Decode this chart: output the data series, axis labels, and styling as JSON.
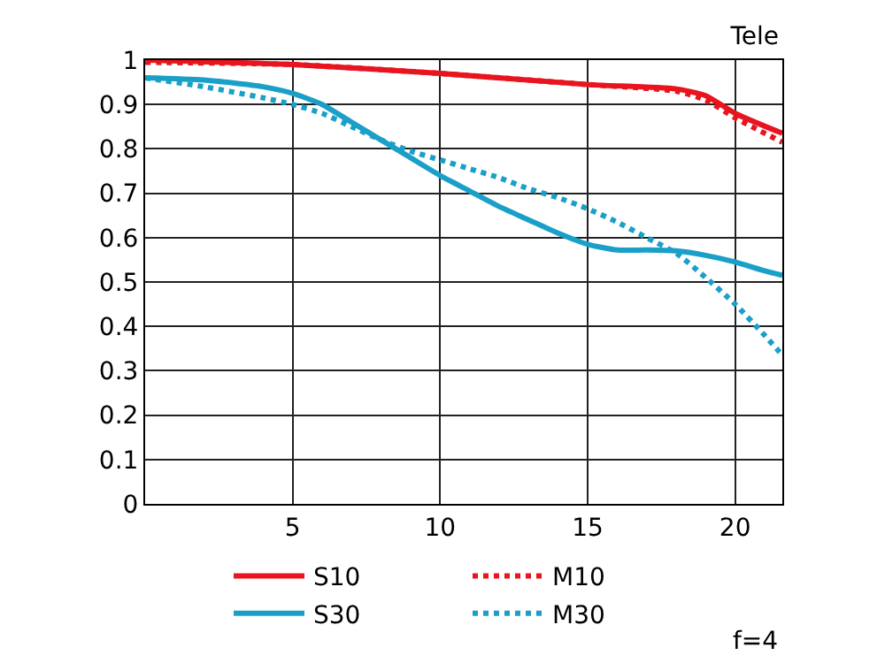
{
  "chart_data": {
    "type": "line",
    "title": "Tele",
    "annotations": [
      "f=4"
    ],
    "xlim": [
      0,
      21.6
    ],
    "xticks": [
      5,
      10,
      15,
      20
    ],
    "ylim": [
      0,
      1
    ],
    "yticks": [
      0,
      0.1,
      0.2,
      0.3,
      0.4,
      0.5,
      0.6,
      0.7,
      0.8,
      0.9,
      1
    ],
    "grid": true,
    "legend": "bottom",
    "marker": "none",
    "series": [
      {
        "name": "S10",
        "color": "#e8141e",
        "line_style": "solid",
        "x": [
          0,
          5,
          10,
          15,
          18,
          19,
          20,
          21.6
        ],
        "values": [
          1.0,
          0.99,
          0.97,
          0.945,
          0.935,
          0.92,
          0.88,
          0.835
        ]
      },
      {
        "name": "M10",
        "color": "#e8141e",
        "line_style": "dotted",
        "x": [
          0,
          5,
          10,
          15,
          18,
          19,
          20,
          21.6
        ],
        "values": [
          0.995,
          0.99,
          0.97,
          0.945,
          0.93,
          0.91,
          0.87,
          0.815
        ]
      },
      {
        "name": "S30",
        "color": "#1aa0c8",
        "line_style": "solid",
        "x": [
          0,
          2,
          4,
          5,
          6,
          7,
          8,
          9,
          10,
          11,
          12,
          13,
          14,
          15,
          16,
          17,
          18,
          19,
          20,
          21,
          21.6
        ],
        "values": [
          0.96,
          0.955,
          0.94,
          0.925,
          0.9,
          0.86,
          0.82,
          0.78,
          0.74,
          0.705,
          0.67,
          0.64,
          0.61,
          0.585,
          0.572,
          0.572,
          0.57,
          0.56,
          0.545,
          0.525,
          0.515
        ]
      },
      {
        "name": "M30",
        "color": "#1aa0c8",
        "line_style": "dotted",
        "x": [
          0,
          2,
          4,
          5,
          6,
          7,
          8,
          9,
          10,
          11,
          12,
          13,
          14,
          15,
          16,
          17,
          18,
          19,
          20,
          21,
          21.6
        ],
        "values": [
          0.96,
          0.94,
          0.915,
          0.9,
          0.88,
          0.85,
          0.82,
          0.795,
          0.775,
          0.755,
          0.735,
          0.71,
          0.69,
          0.665,
          0.635,
          0.6,
          0.565,
          0.51,
          0.45,
          0.38,
          0.335
        ]
      }
    ]
  }
}
